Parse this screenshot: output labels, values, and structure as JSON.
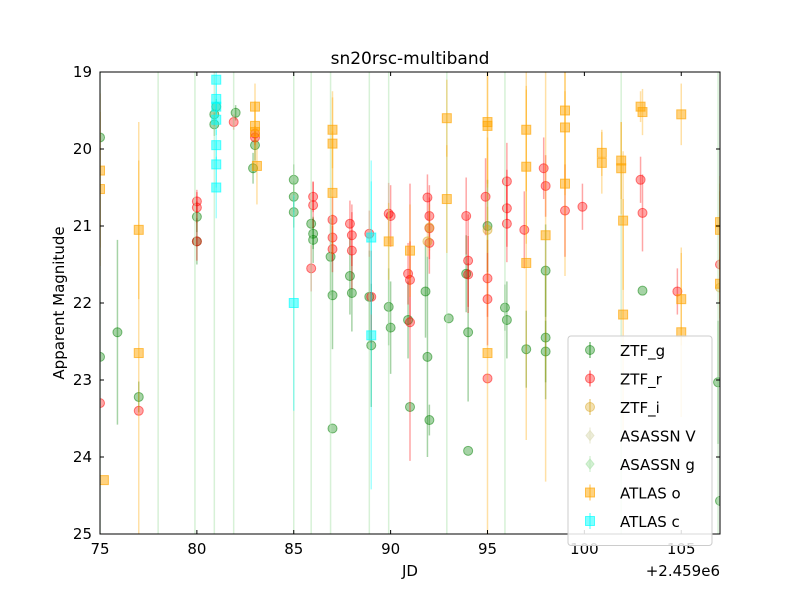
{
  "chart_data": {
    "type": "scatter",
    "title": "sn20rsc-multiband",
    "xlabel": "JD",
    "ylabel": "Apparent Magnitude",
    "x_offset_label": "+2.459e6",
    "xlim": [
      75,
      107
    ],
    "ylim": [
      19,
      25
    ],
    "y_inverted": true,
    "x_ticks": [
      75,
      80,
      85,
      90,
      95,
      100,
      105
    ],
    "y_ticks": [
      19,
      20,
      21,
      22,
      23,
      24,
      25
    ],
    "legend_position": "lower-right",
    "series": [
      {
        "name": "ZTF_g",
        "marker": "circle",
        "color": "#008000",
        "points": [
          [
            75.0,
            19.85,
            0.0
          ],
          [
            75.0,
            22.7,
            0.0
          ],
          [
            75.9,
            22.38,
            1.2
          ],
          [
            77.0,
            23.22,
            0.2
          ],
          [
            80.0,
            20.88,
            0.2
          ],
          [
            80.0,
            21.2,
            0.3
          ],
          [
            80.9,
            19.68,
            0.15
          ],
          [
            80.9,
            19.55,
            0.15
          ],
          [
            81.0,
            19.45,
            0.1
          ],
          [
            82.0,
            19.53,
            0.1
          ],
          [
            82.9,
            20.25,
            0.2
          ],
          [
            83.0,
            19.95,
            0.2
          ],
          [
            85.0,
            20.4,
            0.2
          ],
          [
            85.0,
            20.62,
            0.2
          ],
          [
            85.0,
            20.82,
            0.2
          ],
          [
            85.9,
            20.97,
            0.2
          ],
          [
            86.0,
            21.1,
            0.2
          ],
          [
            86.0,
            21.18,
            0.3
          ],
          [
            86.9,
            21.4,
            0.5
          ],
          [
            87.0,
            21.9,
            0.7
          ],
          [
            87.0,
            23.63,
            0.0
          ],
          [
            87.9,
            21.65,
            0.5
          ],
          [
            88.0,
            21.87,
            0.5
          ],
          [
            88.9,
            21.92,
            0.6
          ],
          [
            89.0,
            22.55,
            0.8
          ],
          [
            89.9,
            22.05,
            0.5
          ],
          [
            90.0,
            22.32,
            0.6
          ],
          [
            90.9,
            22.22,
            0.5
          ],
          [
            91.0,
            23.35,
            0.0
          ],
          [
            91.8,
            21.85,
            0.6
          ],
          [
            91.9,
            22.7,
            1.3
          ],
          [
            92.0,
            23.52,
            0.2
          ],
          [
            93.0,
            22.2,
            0.0
          ],
          [
            93.9,
            21.62,
            0.5
          ],
          [
            94.0,
            22.38,
            0.9
          ],
          [
            94.0,
            23.92,
            0.0
          ],
          [
            95.0,
            21.0,
            0.6
          ],
          [
            95.9,
            22.06,
            0.3
          ],
          [
            96.0,
            22.22,
            0.5
          ],
          [
            97.0,
            22.6,
            0.5
          ],
          [
            98.0,
            21.58,
            0.6
          ],
          [
            98.0,
            22.45,
            0.8
          ],
          [
            98.0,
            22.63,
            0.4
          ],
          [
            103.0,
            21.84,
            0.0
          ],
          [
            106.9,
            23.03,
            0.8
          ],
          [
            107.0,
            24.57,
            0.0
          ]
        ]
      },
      {
        "name": "ZTF_r",
        "marker": "circle",
        "color": "#ff0000",
        "points": [
          [
            75.0,
            23.3,
            0.0
          ],
          [
            77.0,
            23.4,
            0.0
          ],
          [
            80.0,
            20.68,
            0.15
          ],
          [
            80.0,
            20.76,
            0.2
          ],
          [
            80.0,
            21.2,
            0.25
          ],
          [
            81.9,
            19.65,
            0.1
          ],
          [
            83.0,
            19.8,
            0.1
          ],
          [
            83.0,
            19.85,
            0.1
          ],
          [
            85.9,
            21.55,
            0.3
          ],
          [
            86.0,
            20.62,
            0.2
          ],
          [
            86.0,
            20.73,
            0.3
          ],
          [
            87.0,
            20.92,
            0.3
          ],
          [
            87.0,
            21.15,
            0.3
          ],
          [
            87.0,
            21.3,
            0.3
          ],
          [
            87.9,
            20.97,
            0.3
          ],
          [
            88.0,
            21.12,
            0.4
          ],
          [
            88.0,
            21.32,
            0.5
          ],
          [
            88.9,
            21.1,
            0.3
          ],
          [
            89.0,
            21.92,
            0.6
          ],
          [
            89.9,
            20.84,
            0.4
          ],
          [
            90.0,
            20.87,
            0.4
          ],
          [
            90.9,
            21.62,
            0.4
          ],
          [
            91.0,
            21.7,
            0.5
          ],
          [
            91.0,
            22.25,
            1.8
          ],
          [
            91.9,
            20.63,
            0.3
          ],
          [
            92.0,
            20.87,
            0.4
          ],
          [
            92.0,
            21.03,
            0.4
          ],
          [
            92.0,
            21.22,
            0.4
          ],
          [
            93.9,
            20.87,
            0.5
          ],
          [
            94.0,
            21.45,
            0.6
          ],
          [
            94.0,
            21.63,
            0.5
          ],
          [
            94.9,
            20.62,
            0.5
          ],
          [
            95.0,
            21.68,
            0.5
          ],
          [
            95.0,
            21.95,
            0.6
          ],
          [
            95.0,
            22.98,
            0.0
          ],
          [
            96.0,
            20.42,
            0.5
          ],
          [
            96.0,
            20.77,
            0.5
          ],
          [
            96.0,
            20.97,
            0.5
          ],
          [
            96.9,
            21.05,
            0.5
          ],
          [
            97.9,
            20.25,
            0.4
          ],
          [
            98.0,
            20.48,
            0.4
          ],
          [
            99.0,
            20.8,
            0.6
          ],
          [
            99.9,
            20.75,
            0.3
          ],
          [
            102.9,
            20.4,
            0.3
          ],
          [
            103.0,
            20.83,
            0.5
          ],
          [
            104.8,
            21.85,
            0.3
          ],
          [
            107.0,
            21.5,
            0.5
          ]
        ]
      },
      {
        "name": "ZTF_i",
        "marker": "circle",
        "color": "#daa520",
        "points": [
          [
            91.9,
            21.2,
            0.2
          ],
          [
            92.0,
            21.02,
            0.3
          ],
          [
            95.0,
            21.05,
            0.3
          ],
          [
            107.0,
            21.8,
            0.4
          ]
        ]
      },
      {
        "name": "ASASSN V",
        "marker": "diamond",
        "color": "#e0e0c0",
        "points": []
      },
      {
        "name": "ASASSN g",
        "marker": "diamond",
        "color": "#b6e6b6",
        "vlines_at": [
          75.0,
          78.0,
          79.9,
          80.9,
          81.9,
          85.0,
          85.9,
          86.9,
          88.9,
          89.9,
          92.9,
          95.9,
          101.9,
          106.9
        ]
      },
      {
        "name": "ATLAS o",
        "marker": "square",
        "color": "#ffa500",
        "points": [
          [
            75.0,
            20.28,
            1.0
          ],
          [
            75.0,
            20.52,
            1.0
          ],
          [
            75.2,
            24.3,
            0.0
          ],
          [
            77.0,
            21.05,
            0.9
          ],
          [
            77.0,
            22.65,
            3.0
          ],
          [
            83.0,
            19.45,
            0.3
          ],
          [
            83.0,
            19.7,
            0.3
          ],
          [
            83.0,
            19.78,
            0.4
          ],
          [
            83.1,
            20.22,
            0.5
          ],
          [
            87.0,
            19.75,
            0.5
          ],
          [
            87.0,
            19.93,
            0.6
          ],
          [
            87.0,
            20.57,
            0.8
          ],
          [
            89.9,
            21.2,
            0.5
          ],
          [
            91.0,
            21.32,
            0.6
          ],
          [
            92.9,
            19.6,
            0.5
          ],
          [
            92.9,
            20.65,
            0.7
          ],
          [
            95.0,
            19.65,
            0.8
          ],
          [
            95.0,
            19.7,
            0.8
          ],
          [
            95.0,
            22.65,
            2.8
          ],
          [
            97.0,
            19.75,
            0.8
          ],
          [
            97.0,
            20.23,
            1.0
          ],
          [
            97.0,
            21.48,
            2.3
          ],
          [
            98.0,
            21.12,
            3.2
          ],
          [
            99.0,
            19.5,
            1.1
          ],
          [
            99.0,
            19.72,
            0.8
          ],
          [
            99.0,
            20.45,
            1.2
          ],
          [
            100.9,
            20.05,
            0.3
          ],
          [
            100.9,
            20.18,
            0.4
          ],
          [
            101.9,
            20.15,
            0.5
          ],
          [
            101.9,
            20.25,
            0.6
          ],
          [
            102.0,
            20.93,
            0.9
          ],
          [
            102.0,
            22.15,
            1.5
          ],
          [
            102.9,
            19.45,
            0.2
          ],
          [
            103.0,
            19.52,
            0.3
          ],
          [
            105.0,
            19.55,
            0.4
          ],
          [
            105.0,
            21.95,
            0.6
          ],
          [
            105.0,
            22.38,
            1.1
          ],
          [
            107.0,
            20.95,
            0.6
          ],
          [
            107.0,
            21.05,
            0.6
          ],
          [
            107.0,
            21.75,
            1.2
          ]
        ]
      },
      {
        "name": "ATLAS c",
        "marker": "square",
        "color": "#00ffff",
        "points": [
          [
            81.0,
            19.1,
            0.15
          ],
          [
            81.0,
            19.35,
            0.2
          ],
          [
            81.0,
            19.45,
            0.2
          ],
          [
            81.0,
            19.62,
            0.2
          ],
          [
            81.0,
            19.95,
            0.2
          ],
          [
            81.0,
            20.2,
            0.3
          ],
          [
            81.0,
            20.5,
            0.4
          ],
          [
            85.0,
            22.0,
            1.4
          ],
          [
            89.0,
            21.15,
            1.0
          ],
          [
            89.0,
            22.42,
            2.0
          ]
        ]
      }
    ]
  }
}
